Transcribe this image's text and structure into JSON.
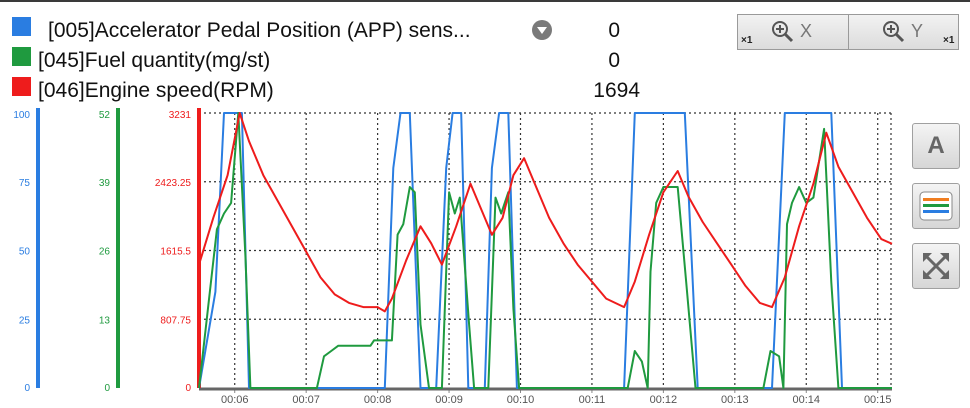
{
  "legend": [
    {
      "label": "[005]Accelerator Pedal Position (APP) sens...",
      "value": "0",
      "color": "#2a7de1"
    },
    {
      "label": "[045]Fuel quantity(mg/st)",
      "value": "0",
      "color": "#1f9a3f"
    },
    {
      "label": "[046]Engine speed(RPM)",
      "value": "1694",
      "color": "#ee1c1c"
    }
  ],
  "zoom": {
    "x_label": "X",
    "y_label": "Y",
    "x_factor": "×1",
    "y_factor": "×1"
  },
  "side_buttons": {
    "text_size_label": "A"
  },
  "chart_data": {
    "type": "line",
    "x_ticks": [
      "00:06",
      "00:07",
      "00:08",
      "00:09",
      "00:10",
      "00:11",
      "00:12",
      "00:13",
      "00:14",
      "00:15"
    ],
    "x_range": [
      5.5,
      15.2
    ],
    "axes": [
      {
        "series": "[005]Accelerator Pedal Position (APP) sens...",
        "color": "#2a7de1",
        "ticks": [
          "100",
          "75",
          "50",
          "25",
          "0"
        ],
        "range": [
          0,
          100
        ]
      },
      {
        "series": "[045]Fuel quantity(mg/st)",
        "color": "#1f9a3f",
        "ticks": [
          "52",
          "39",
          "26",
          "13",
          "0"
        ],
        "range": [
          0,
          52
        ]
      },
      {
        "series": "[046]Engine speed(RPM)",
        "color": "#ee1c1c",
        "ticks": [
          "3231",
          "2423.25",
          "1615.5",
          "807.75",
          "0"
        ],
        "range": [
          0,
          3231
        ]
      }
    ],
    "grid": true,
    "series": [
      {
        "name": "[005]Accelerator Pedal Position (APP) sens...",
        "color": "#2a7de1",
        "points": [
          [
            5.5,
            0
          ],
          [
            5.73,
            35
          ],
          [
            5.85,
            100
          ],
          [
            6.1,
            100
          ],
          [
            6.2,
            0
          ],
          [
            8.1,
            0
          ],
          [
            8.22,
            80
          ],
          [
            8.32,
            100
          ],
          [
            8.45,
            100
          ],
          [
            8.6,
            0
          ],
          [
            8.82,
            0
          ],
          [
            8.96,
            80
          ],
          [
            9.05,
            100
          ],
          [
            9.17,
            100
          ],
          [
            9.27,
            0
          ],
          [
            9.5,
            0
          ],
          [
            9.6,
            80
          ],
          [
            9.7,
            100
          ],
          [
            9.83,
            100
          ],
          [
            9.95,
            0
          ],
          [
            11.45,
            0
          ],
          [
            11.6,
            100
          ],
          [
            12.3,
            100
          ],
          [
            12.48,
            0
          ],
          [
            13.52,
            0
          ],
          [
            13.7,
            100
          ],
          [
            14.35,
            100
          ],
          [
            14.5,
            0
          ],
          [
            15.2,
            0
          ]
        ]
      },
      {
        "name": "[045]Fuel quantity(mg/st)",
        "color": "#1f9a3f",
        "points": [
          [
            5.5,
            0
          ],
          [
            5.75,
            30
          ],
          [
            5.85,
            33
          ],
          [
            5.95,
            35
          ],
          [
            6.05,
            52
          ],
          [
            6.15,
            25
          ],
          [
            6.22,
            0
          ],
          [
            7.15,
            0
          ],
          [
            7.25,
            6
          ],
          [
            7.35,
            7
          ],
          [
            7.45,
            8
          ],
          [
            7.9,
            8
          ],
          [
            7.95,
            9
          ],
          [
            8.2,
            9
          ],
          [
            8.28,
            29
          ],
          [
            8.36,
            31
          ],
          [
            8.45,
            38
          ],
          [
            8.52,
            37
          ],
          [
            8.6,
            12
          ],
          [
            8.72,
            0
          ],
          [
            8.9,
            0
          ],
          [
            9.0,
            37
          ],
          [
            9.08,
            33
          ],
          [
            9.15,
            36
          ],
          [
            9.28,
            12
          ],
          [
            9.35,
            0
          ],
          [
            9.55,
            0
          ],
          [
            9.65,
            36
          ],
          [
            9.73,
            33
          ],
          [
            9.83,
            37
          ],
          [
            9.9,
            15
          ],
          [
            9.98,
            0
          ],
          [
            11.5,
            0
          ],
          [
            11.6,
            7
          ],
          [
            11.7,
            5
          ],
          [
            11.78,
            0
          ],
          [
            11.82,
            22
          ],
          [
            11.9,
            35
          ],
          [
            12.0,
            38
          ],
          [
            12.2,
            38
          ],
          [
            12.32,
            20
          ],
          [
            12.45,
            0
          ],
          [
            13.4,
            0
          ],
          [
            13.5,
            7
          ],
          [
            13.62,
            6
          ],
          [
            13.68,
            0
          ],
          [
            13.73,
            31
          ],
          [
            13.8,
            35
          ],
          [
            13.9,
            38
          ],
          [
            14.0,
            35
          ],
          [
            14.1,
            36
          ],
          [
            14.25,
            49
          ],
          [
            14.35,
            20
          ],
          [
            14.45,
            0
          ],
          [
            15.2,
            0
          ]
        ]
      },
      {
        "name": "[046]Engine speed(RPM)",
        "color": "#ee1c1c",
        "points": [
          [
            5.5,
            1450
          ],
          [
            5.7,
            2000
          ],
          [
            5.9,
            2500
          ],
          [
            6.07,
            3231
          ],
          [
            6.2,
            2900
          ],
          [
            6.4,
            2500
          ],
          [
            6.6,
            2200
          ],
          [
            6.8,
            1900
          ],
          [
            7.0,
            1600
          ],
          [
            7.2,
            1300
          ],
          [
            7.4,
            1100
          ],
          [
            7.6,
            1000
          ],
          [
            7.8,
            950
          ],
          [
            8.0,
            950
          ],
          [
            8.1,
            900
          ],
          [
            8.2,
            1050
          ],
          [
            8.4,
            1500
          ],
          [
            8.6,
            1900
          ],
          [
            8.75,
            1700
          ],
          [
            8.9,
            1450
          ],
          [
            9.1,
            1900
          ],
          [
            9.3,
            2400
          ],
          [
            9.45,
            2100
          ],
          [
            9.6,
            1800
          ],
          [
            9.75,
            2000
          ],
          [
            9.9,
            2500
          ],
          [
            10.05,
            2700
          ],
          [
            10.2,
            2400
          ],
          [
            10.4,
            2000
          ],
          [
            10.6,
            1700
          ],
          [
            10.8,
            1450
          ],
          [
            11.0,
            1250
          ],
          [
            11.2,
            1050
          ],
          [
            11.45,
            950
          ],
          [
            11.6,
            1250
          ],
          [
            11.8,
            1800
          ],
          [
            12.0,
            2300
          ],
          [
            12.2,
            2550
          ],
          [
            12.35,
            2250
          ],
          [
            12.55,
            1950
          ],
          [
            12.75,
            1700
          ],
          [
            12.95,
            1450
          ],
          [
            13.15,
            1200
          ],
          [
            13.35,
            1000
          ],
          [
            13.52,
            950
          ],
          [
            13.7,
            1300
          ],
          [
            13.9,
            1900
          ],
          [
            14.1,
            2400
          ],
          [
            14.28,
            3000
          ],
          [
            14.45,
            2600
          ],
          [
            14.65,
            2300
          ],
          [
            14.85,
            2000
          ],
          [
            15.05,
            1750
          ],
          [
            15.2,
            1694
          ]
        ]
      }
    ]
  }
}
